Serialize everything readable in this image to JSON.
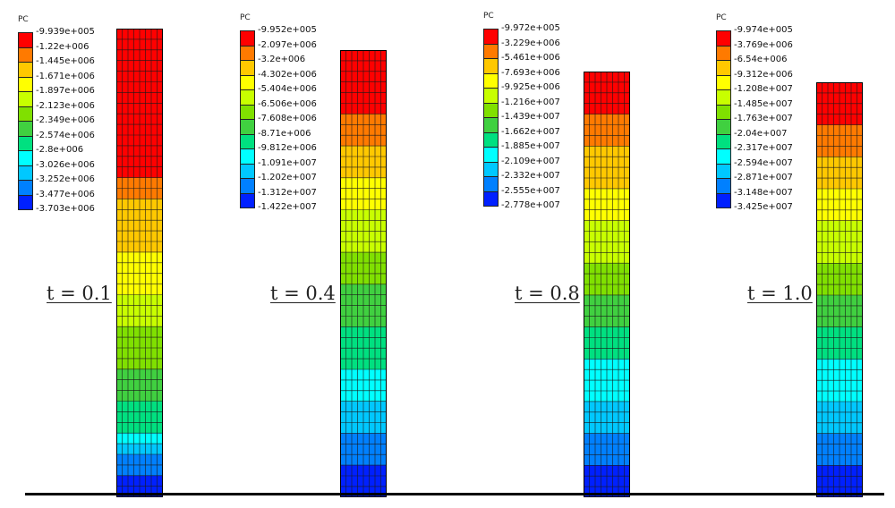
{
  "variable": "PC",
  "colors": [
    "#ff0000",
    "#ff7a00",
    "#ffc800",
    "#ffff00",
    "#c8ff00",
    "#80e000",
    "#40d040",
    "#00e080",
    "#00ffff",
    "#00c8ff",
    "#0080ff",
    "#0020ff"
  ],
  "panels": [
    {
      "time_label": "t = 0.1",
      "legend": [
        "-9.939e+005",
        "-1.22e+006",
        "-1.445e+006",
        "-1.671e+006",
        "-1.897e+006",
        "-2.123e+006",
        "-2.349e+006",
        "-2.574e+006",
        "-2.8e+006",
        "-3.026e+006",
        "-3.252e+006",
        "-3.477e+006",
        "-3.703e+006"
      ],
      "column_rows": 44,
      "band_rows": [
        14,
        2,
        5,
        4,
        3,
        4,
        3,
        3,
        1,
        1,
        2,
        2
      ]
    },
    {
      "time_label": "t = 0.4",
      "legend": [
        "-9.952e+005",
        "-2.097e+006",
        "-3.2e+006",
        "-4.302e+006",
        "-5.404e+006",
        "-6.506e+006",
        "-7.608e+006",
        "-8.71e+006",
        "-9.812e+006",
        "-1.091e+007",
        "-1.202e+007",
        "-1.312e+007",
        "-1.422e+007"
      ],
      "column_rows": 42,
      "band_rows": [
        6,
        3,
        3,
        3,
        4,
        3,
        4,
        4,
        3,
        3,
        3,
        3
      ]
    },
    {
      "time_label": "t = 0.8",
      "legend": [
        "-9.972e+005",
        "-3.229e+006",
        "-5.461e+006",
        "-7.693e+006",
        "-9.925e+006",
        "-1.216e+007",
        "-1.439e+007",
        "-1.662e+007",
        "-1.885e+007",
        "-2.109e+007",
        "-2.332e+007",
        "-2.555e+007",
        "-2.778e+007"
      ],
      "column_rows": 40,
      "band_rows": [
        4,
        3,
        4,
        3,
        4,
        3,
        3,
        3,
        4,
        3,
        3,
        3
      ]
    },
    {
      "time_label": "t = 1.0",
      "legend": [
        "-9.974e+005",
        "-3.769e+006",
        "-6.54e+006",
        "-9.312e+006",
        "-1.208e+007",
        "-1.485e+007",
        "-1.763e+007",
        "-2.04e+007",
        "-2.317e+007",
        "-2.594e+007",
        "-2.871e+007",
        "-3.148e+007",
        "-3.425e+007"
      ],
      "column_rows": 39,
      "band_rows": [
        4,
        3,
        3,
        3,
        4,
        3,
        3,
        3,
        4,
        3,
        3,
        3
      ]
    }
  ]
}
